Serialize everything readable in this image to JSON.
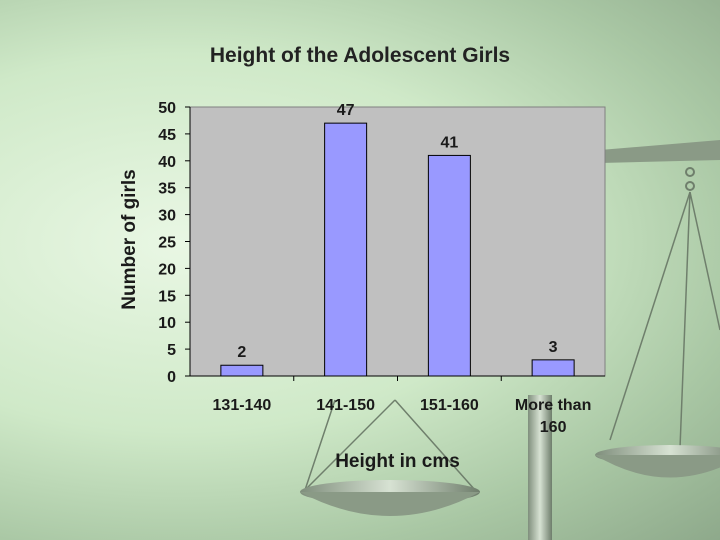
{
  "chart_data": {
    "type": "bar",
    "title": "Height of the Adolescent Girls",
    "xlabel": "Height in cms",
    "ylabel": "Number of girls",
    "categories": [
      "131-140",
      "141-150",
      "151-160",
      "More than 160"
    ],
    "category_lines": [
      [
        "131-140"
      ],
      [
        "141-150"
      ],
      [
        "151-160"
      ],
      [
        "More than",
        "160"
      ]
    ],
    "values": [
      2,
      47,
      41,
      3
    ],
    "data_labels": [
      "2",
      "47",
      "41",
      "3"
    ],
    "ylim": [
      0,
      50
    ],
    "yticks": [
      "0",
      "5",
      "10",
      "15",
      "20",
      "25",
      "30",
      "35",
      "40",
      "45",
      "50"
    ],
    "grid": false,
    "legend": "none",
    "colors": {
      "bar": "#9999ff",
      "bar_edge": "#000000",
      "plot_bg": "#c0c0c0"
    }
  }
}
